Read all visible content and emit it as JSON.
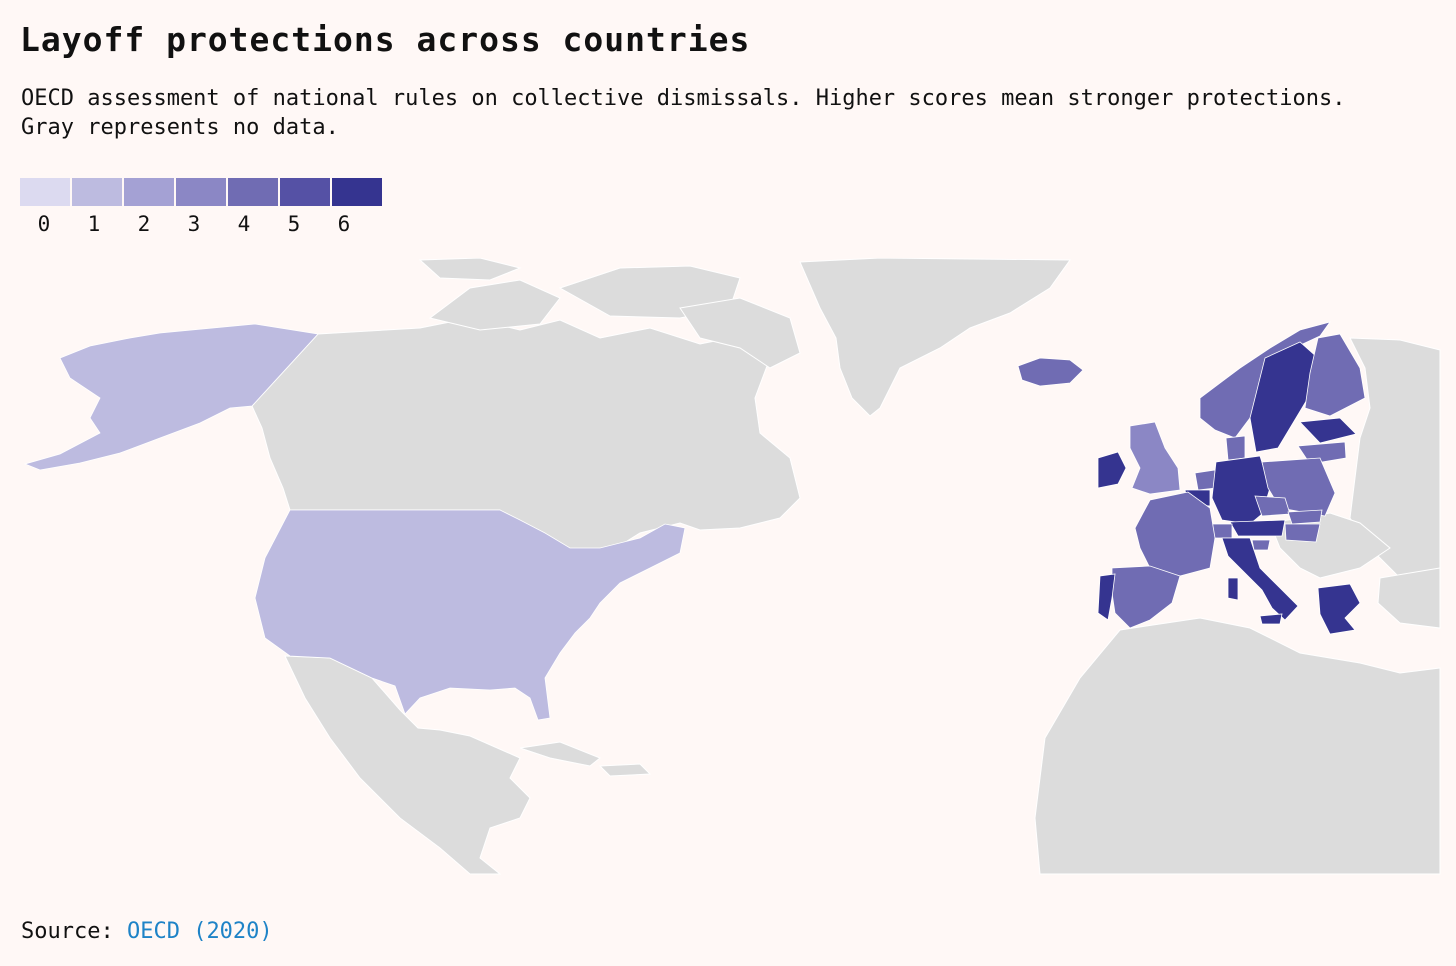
{
  "title": "Layoff protections across countries",
  "subtitle": "OECD assessment of national rules on collective dismissals. Higher scores mean stronger protections. Gray represents no data.",
  "legend": {
    "ticks": [
      "0",
      "1",
      "2",
      "3",
      "4",
      "5",
      "6"
    ],
    "colors": [
      "#dcdaf0",
      "#bdbbe0",
      "#a4a1d4",
      "#8b87c5",
      "#706cb3",
      "#5551a5",
      "#353490"
    ]
  },
  "colors": {
    "no_data": "#dcdcdc",
    "background": "#fff8f6",
    "border": "#ffffff",
    "link": "#1e83c7"
  },
  "map_data": {
    "regions": [
      {
        "name": "United States",
        "score": 1
      },
      {
        "name": "Alaska",
        "score": 1
      },
      {
        "name": "Iceland",
        "score": 4
      },
      {
        "name": "Ireland",
        "score": 6
      },
      {
        "name": "United Kingdom",
        "score": 3
      },
      {
        "name": "Norway",
        "score": 4
      },
      {
        "name": "Sweden",
        "score": 6
      },
      {
        "name": "Finland",
        "score": 4
      },
      {
        "name": "Estonia",
        "score": 6
      },
      {
        "name": "Latvia",
        "score": 4
      },
      {
        "name": "Denmark",
        "score": 4
      },
      {
        "name": "Netherlands",
        "score": 4
      },
      {
        "name": "Belgium",
        "score": 6
      },
      {
        "name": "Germany",
        "score": 6
      },
      {
        "name": "Poland",
        "score": 4
      },
      {
        "name": "Czech Republic",
        "score": 4
      },
      {
        "name": "Slovakia",
        "score": 4
      },
      {
        "name": "Austria",
        "score": 6
      },
      {
        "name": "Hungary",
        "score": 4
      },
      {
        "name": "Switzerland",
        "score": 4
      },
      {
        "name": "France",
        "score": 4
      },
      {
        "name": "Spain",
        "score": 4
      },
      {
        "name": "Portugal",
        "score": 6
      },
      {
        "name": "Italy",
        "score": 6
      },
      {
        "name": "Slovenia",
        "score": 4
      },
      {
        "name": "Greece",
        "score": 6
      }
    ]
  },
  "source": {
    "label": "Source:",
    "link_text": "OECD (2020)"
  }
}
